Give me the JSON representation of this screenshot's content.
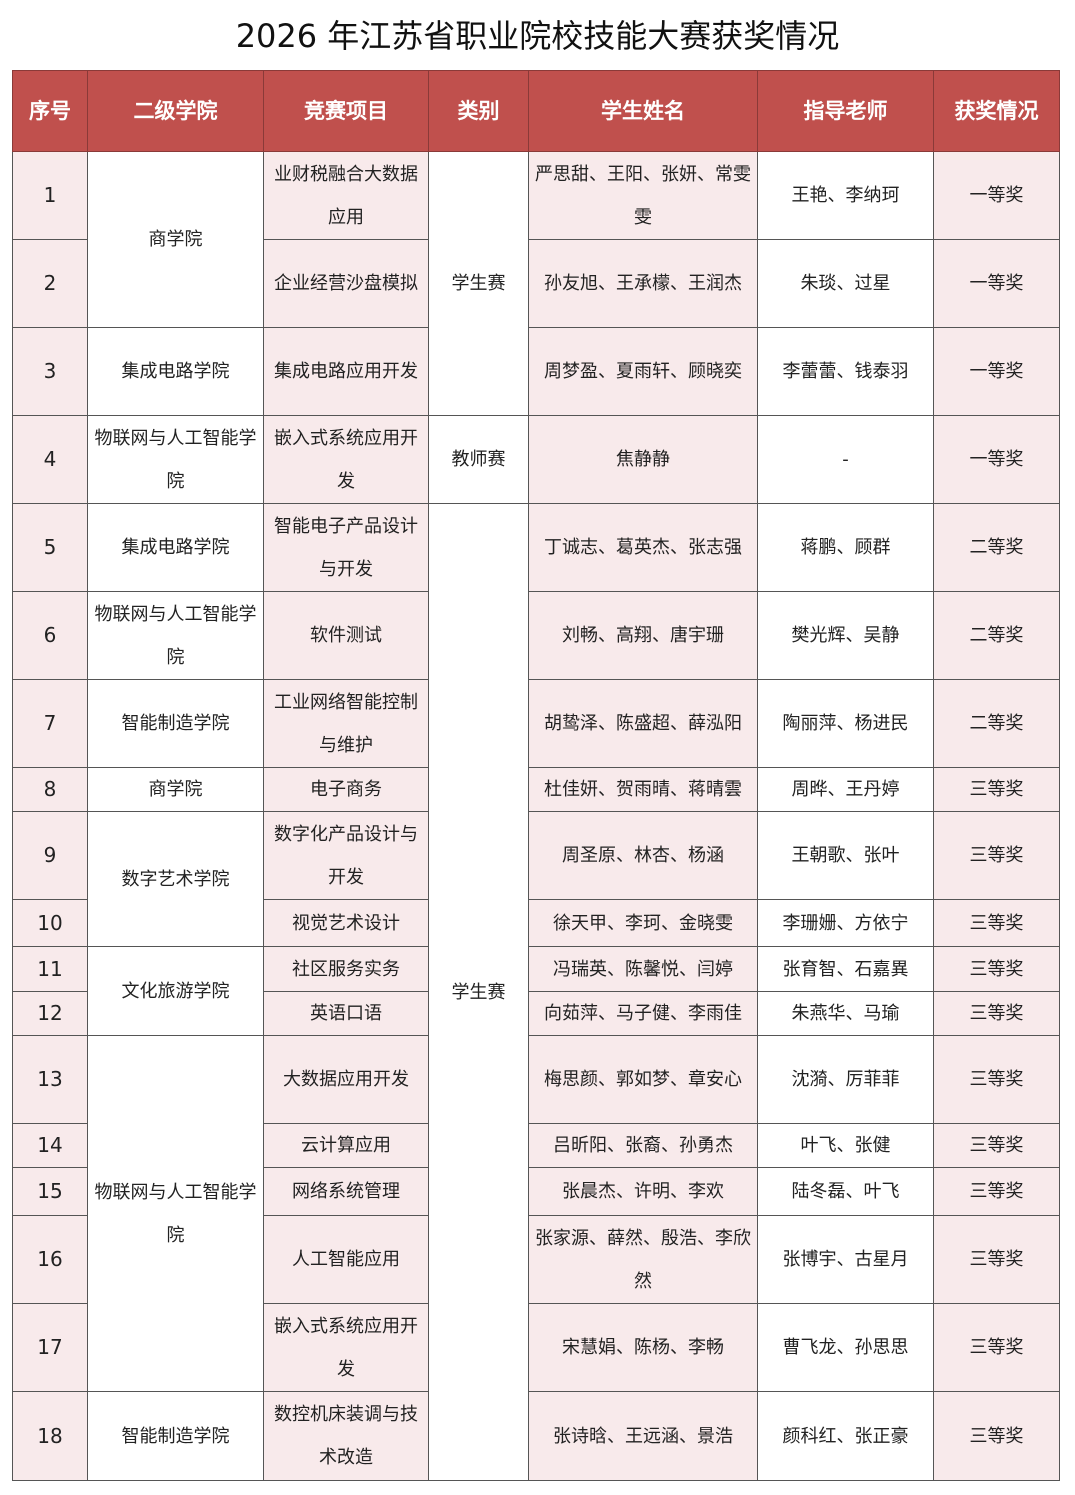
{
  "title": "2026 年江苏省职业院校技能大赛获奖情况",
  "colors": {
    "header": "#c0504d",
    "shade": "#f8eaeb"
  },
  "headers": [
    "序号",
    "二级学院",
    "竞赛项目",
    "类别",
    "学生姓名",
    "指导老师",
    "获奖情况"
  ],
  "colleges": [
    {
      "name": "商学院",
      "rows": 2
    },
    {
      "name": "集成电路学院",
      "rows": 1
    },
    {
      "name": "物联网与人工智能学院",
      "rows": 1
    },
    {
      "name": "集成电路学院",
      "rows": 1
    },
    {
      "name": "物联网与人工智能学院",
      "rows": 1
    },
    {
      "name": "智能制造学院",
      "rows": 1
    },
    {
      "name": "商学院",
      "rows": 1
    },
    {
      "name": "数字艺术学院",
      "rows": 2
    },
    {
      "name": "文化旅游学院",
      "rows": 2
    },
    {
      "name": "物联网与人工智能学院",
      "rows": 5
    },
    {
      "name": "智能制造学院",
      "rows": 1
    }
  ],
  "categories": [
    {
      "name": "学生赛",
      "rows": 3
    },
    {
      "name": "教师赛",
      "rows": 1
    },
    {
      "name": "学生赛",
      "rows": 14
    }
  ],
  "rows": [
    {
      "no": "1",
      "project": "业财税融合大数据应用",
      "students": "严思甜、王阳、张妍、常雯雯",
      "teachers": "王艳、李纳珂",
      "award": "一等奖"
    },
    {
      "no": "2",
      "project": "企业经营沙盘模拟",
      "students": "孙友旭、王承檬、王润杰",
      "teachers": "朱琰、过星",
      "award": "一等奖"
    },
    {
      "no": "3",
      "project": "集成电路应用开发",
      "students": "周梦盈、夏雨轩、顾晓奕",
      "teachers": "李蕾蕾、钱泰羽",
      "award": "一等奖"
    },
    {
      "no": "4",
      "project": "嵌入式系统应用开发",
      "students": "焦静静",
      "teachers": "-",
      "award": "一等奖"
    },
    {
      "no": "5",
      "project": "智能电子产品设计与开发",
      "students": "丁诚志、葛英杰、张志强",
      "teachers": "蒋鹏、顾群",
      "award": "二等奖"
    },
    {
      "no": "6",
      "project": "软件测试",
      "students": "刘畅、高翔、唐宇珊",
      "teachers": "樊光辉、吴静",
      "award": "二等奖"
    },
    {
      "no": "7",
      "project": "工业网络智能控制与维护",
      "students": "胡鸷泽、陈盛超、薛泓阳",
      "teachers": "陶丽萍、杨进民",
      "award": "二等奖"
    },
    {
      "no": "8",
      "project": "电子商务",
      "students": "杜佳妍、贺雨晴、蒋晴雲",
      "teachers": "周晔、王丹婷",
      "award": "三等奖"
    },
    {
      "no": "9",
      "project": "数字化产品设计与开发",
      "students": "周圣原、林杏、杨涵",
      "teachers": "王朝歌、张叶",
      "award": "三等奖"
    },
    {
      "no": "10",
      "project": "视觉艺术设计",
      "students": "徐天甲、李珂、金晓雯",
      "teachers": "李珊姗、方依宁",
      "award": "三等奖"
    },
    {
      "no": "11",
      "project": "社区服务实务",
      "students": "冯瑞英、陈馨悦、闫婷",
      "teachers": "张育智、石嘉異",
      "award": "三等奖"
    },
    {
      "no": "12",
      "project": "英语口语",
      "students": "向茹萍、马子健、李雨佳",
      "teachers": "朱燕华、马瑜",
      "award": "三等奖"
    },
    {
      "no": "13",
      "project": "大数据应用开发",
      "students": "梅思颜、郭如梦、章安心",
      "teachers": "沈漪、厉菲菲",
      "award": "三等奖"
    },
    {
      "no": "14",
      "project": "云计算应用",
      "students": "吕昕阳、张裔、孙勇杰",
      "teachers": "叶飞、张健",
      "award": "三等奖"
    },
    {
      "no": "15",
      "project": "网络系统管理",
      "students": "张晨杰、许明、李欢",
      "teachers": "陆冬磊、叶飞",
      "award": "三等奖"
    },
    {
      "no": "16",
      "project": "人工智能应用",
      "students": "张家源、薛然、殷浩、李欣然",
      "teachers": "张博宇、古星月",
      "award": "三等奖"
    },
    {
      "no": "17",
      "project": "嵌入式系统应用开发",
      "students": "宋慧娟、陈杨、李畅",
      "teachers": "曹飞龙、孙思思",
      "award": "三等奖"
    },
    {
      "no": "18",
      "project": "数控机床装调与技术改造",
      "students": "张诗晗、王远涵、景浩",
      "teachers": "颜科红、张正豪",
      "award": "三等奖"
    }
  ]
}
